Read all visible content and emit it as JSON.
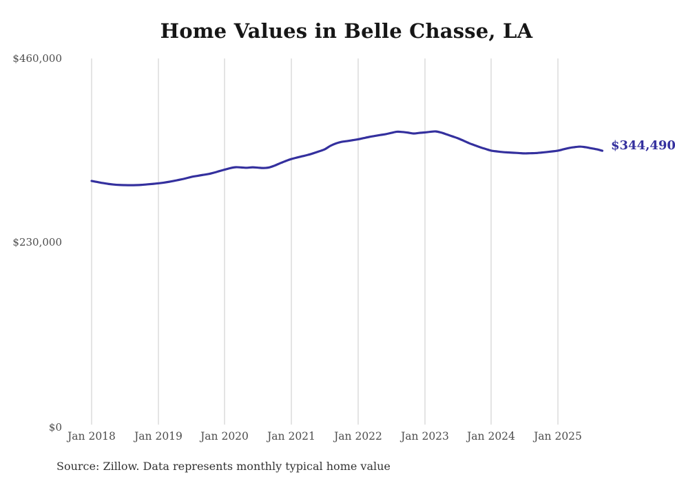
{
  "page": {
    "background_color": "#ffffff"
  },
  "chart": {
    "title": "Home Values in Belle Chasse, LA",
    "source_note": "Source: Zillow. Data represents monthly typical home value",
    "end_value_label": "$344,490",
    "colors": {
      "line": "#34309e",
      "end_label": "#34309e",
      "gridline": "#c9c9c9",
      "title_text": "#161616",
      "axis_text": "#4d4d4d",
      "source_text": "#333333"
    }
  },
  "chart_data": {
    "type": "line",
    "title": "Home Values in Belle Chasse, LA",
    "xlabel": "",
    "ylabel": "",
    "ylim": [
      0,
      460000
    ],
    "y_tick_labels": [
      "$0",
      "$230,000",
      "$460,000"
    ],
    "y_tick_values": [
      0,
      230000,
      460000
    ],
    "x_tick_labels": [
      "Jan 2018",
      "Jan 2019",
      "Jan 2020",
      "Jan 2021",
      "Jan 2022",
      "Jan 2023",
      "Jan 2024",
      "Jan 2025"
    ],
    "grid": "vertical-only",
    "legend": "none",
    "frequency": "monthly",
    "x_start": "2018-01",
    "x_end": "2025-09",
    "final_value": 344490,
    "final_value_label": "$344,490",
    "series": [
      {
        "name": "Typical home value",
        "values": [
          306700,
          305400,
          304100,
          303000,
          302200,
          301700,
          301500,
          301400,
          301500,
          301800,
          302400,
          303000,
          303700,
          304600,
          305700,
          307000,
          308400,
          310000,
          311800,
          313000,
          314200,
          315300,
          317000,
          319000,
          320900,
          322800,
          323900,
          323600,
          323200,
          323800,
          323300,
          322900,
          323600,
          326000,
          329000,
          331800,
          334200,
          336000,
          337700,
          339400,
          341500,
          343800,
          346300,
          350600,
          353600,
          355600,
          356600,
          357700,
          358800,
          360300,
          361800,
          363000,
          364200,
          365300,
          366900,
          368300,
          368000,
          367200,
          366100,
          366800,
          367400,
          368200,
          368700,
          367200,
          364900,
          362500,
          360100,
          357100,
          354000,
          351400,
          348900,
          346700,
          344600,
          343700,
          342900,
          342400,
          342000,
          341600,
          341200,
          341400,
          341600,
          342200,
          342900,
          343700,
          344600,
          346300,
          348000,
          349000,
          349700,
          348900,
          347600,
          346300,
          344490
        ]
      }
    ]
  }
}
